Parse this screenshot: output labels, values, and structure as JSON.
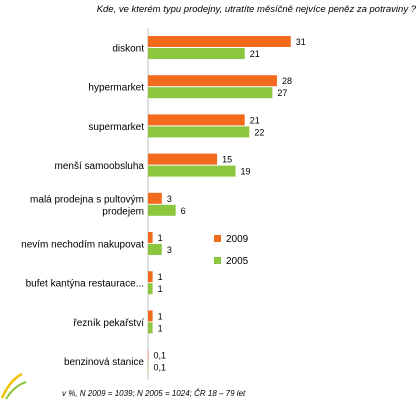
{
  "chart_data": {
    "type": "bar",
    "orientation": "horizontal",
    "title": "Kde, ve kterém typu prodejny, utratíte měsíčně nejvíce peněz za potraviny ?",
    "categories": [
      "diskont",
      "hypermarket",
      "supermarket",
      "menší samoobsluha",
      "malá prodejna s pultovým prodejem",
      "nevím nechodím nakupovat",
      "bufet kantýna restaurace...",
      "řezník pekařství",
      "benzinová stanice"
    ],
    "series": [
      {
        "name": "2009",
        "color": "#f26b1d",
        "values": [
          31,
          28,
          21,
          15,
          3,
          1,
          1,
          1,
          0.1
        ],
        "value_labels": [
          "31",
          "28",
          "21",
          "15",
          "3",
          "1",
          "1",
          "1",
          "0,1"
        ]
      },
      {
        "name": "2005",
        "color": "#8cc63f",
        "values": [
          21,
          27,
          22,
          19,
          6,
          3,
          1,
          1,
          0.1
        ],
        "value_labels": [
          "21",
          "27",
          "22",
          "19",
          "6",
          "3",
          "1",
          "1",
          "0,1"
        ]
      }
    ],
    "xlim": [
      0,
      33
    ],
    "legend_position": "right",
    "grid": false,
    "note": "v %,  N 2009 = 1039; N 2005 = 1024; ČR 18 – 79 let"
  }
}
